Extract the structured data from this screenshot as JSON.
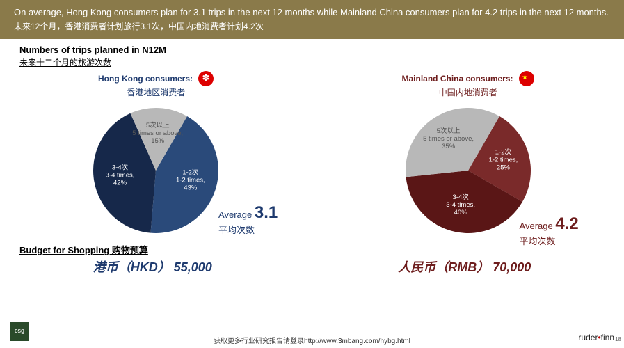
{
  "header": {
    "en": "On average, Hong Kong consumers plan for 3.1 trips in the next 12 months while Mainland China consumers plan for 4.2 trips in the next 12 months.",
    "cn": "未来12个月，香港消费者计划旅行3.1次，中国内地消费者计划4.2次"
  },
  "subtitle": {
    "en": "Numbers of trips planned in N12M",
    "cn": "未来十二个月的旅游次数"
  },
  "hk": {
    "title_en": "Hong Kong consumers:",
    "title_cn": "香港地区消费者",
    "slices": [
      {
        "label_cn": "1-2次",
        "label_en": "1-2 times,",
        "pct": "43%",
        "value": 43,
        "color": "#2a4a7a"
      },
      {
        "label_cn": "3-4次",
        "label_en": "3-4 times,",
        "pct": "42%",
        "value": 42,
        "color": "#16284a"
      },
      {
        "label_cn": "5次以上",
        "label_en": "5 times or above,",
        "pct": "15%",
        "value": 15,
        "color": "#b8b8b8"
      }
    ],
    "avg_label": "Average",
    "avg_num": "3.1",
    "avg_cn": "平均次数"
  },
  "cn": {
    "title_en": "Mainland China consumers:",
    "title_cn": "中国内地消费者",
    "slices": [
      {
        "label_cn": "1-2次",
        "label_en": "1-2 times,",
        "pct": "25%",
        "value": 25,
        "color": "#7a2a2a"
      },
      {
        "label_cn": "3-4次",
        "label_en": "3-4 times,",
        "pct": "40%",
        "value": 40,
        "color": "#5a1616"
      },
      {
        "label_cn": "5次以上",
        "label_en": "5 times or above,",
        "pct": "35%",
        "value": 35,
        "color": "#b8b8b8"
      }
    ],
    "avg_label": "Average",
    "avg_num": "4.2",
    "avg_cn": "平均次数"
  },
  "budget": {
    "title": "Budget for Shopping 购物预算",
    "hk": "港币（HKD） 55,000",
    "cn": "人民币（RMB） 70,000"
  },
  "footer": {
    "text": "获取更多行业研究报告请登录http://www.3mbang.com/hybg.html",
    "logo_left": "csg",
    "logo_right_a": "ruder",
    "logo_right_b": "finn",
    "page": "18"
  },
  "chart_style": {
    "type": "pie",
    "radius": 90,
    "start_angle_deg": -60,
    "label_fontsize": 10,
    "label_color": "#ffffff"
  }
}
